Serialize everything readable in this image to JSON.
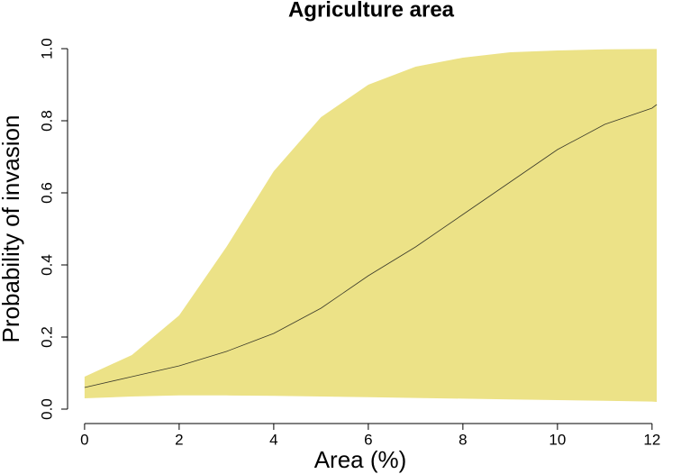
{
  "chart_data": {
    "type": "line",
    "title": "Agriculture area",
    "xlabel": "Area (%)",
    "ylabel": "Probability of invasion",
    "x": [
      0,
      1,
      2,
      3,
      4,
      5,
      6,
      7,
      8,
      9,
      10,
      11,
      12,
      12.1
    ],
    "series": [
      {
        "color": "#3a3a2a",
        "values": [
          0.06,
          0.09,
          0.12,
          0.16,
          0.21,
          0.28,
          0.37,
          0.45,
          0.54,
          0.63,
          0.72,
          0.79,
          0.835,
          0.845
        ]
      }
    ],
    "band": {
      "color": "#ece287",
      "upper": [
        0.09,
        0.15,
        0.26,
        0.45,
        0.66,
        0.81,
        0.9,
        0.95,
        0.975,
        0.99,
        0.995,
        0.998,
        0.999,
        0.999
      ],
      "lower": [
        0.03,
        0.035,
        0.038,
        0.038,
        0.037,
        0.035,
        0.033,
        0.031,
        0.029,
        0.027,
        0.025,
        0.023,
        0.021,
        0.02
      ]
    },
    "xlim": [
      -0.36,
      12.46
    ],
    "ylim": [
      -0.04,
      1.04
    ],
    "xticks": [
      0,
      2,
      4,
      6,
      8,
      10,
      12
    ],
    "yticks": [
      {
        "value": 0,
        "label": "0.0"
      },
      0.2,
      0.4,
      0.6,
      0.8,
      {
        "value": 1,
        "label": "1.0"
      }
    ]
  }
}
